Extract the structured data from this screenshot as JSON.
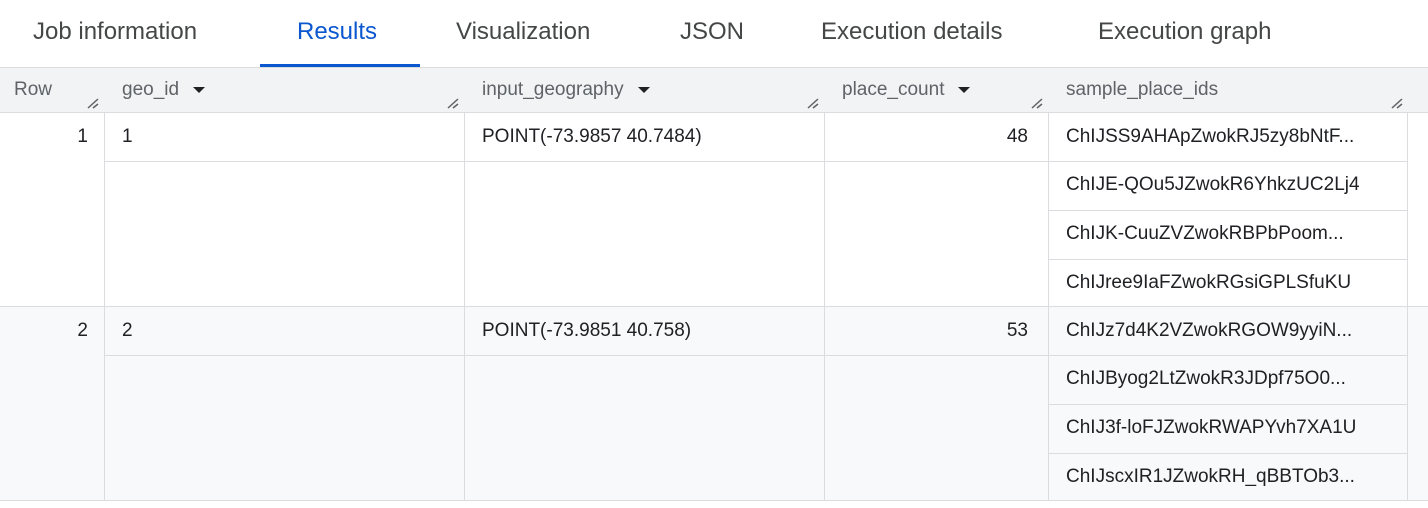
{
  "tabs": [
    {
      "label": "Job information",
      "active": false
    },
    {
      "label": "Results",
      "active": true
    },
    {
      "label": "Visualization",
      "active": false
    },
    {
      "label": "JSON",
      "active": false
    },
    {
      "label": "Execution details",
      "active": false
    },
    {
      "label": "Execution graph",
      "active": false
    }
  ],
  "accent_color": "#0b57d0",
  "columns": [
    {
      "label": "Row"
    },
    {
      "label": "geo_id",
      "sortable": true
    },
    {
      "label": "input_geography",
      "sortable": true
    },
    {
      "label": "place_count",
      "sortable": true
    },
    {
      "label": "sample_place_ids"
    }
  ],
  "rows": [
    {
      "row": "1",
      "geo_id": "1",
      "input_geography": "POINT(-73.9857 40.7484)",
      "place_count": "48",
      "sample_place_ids": [
        "ChIJSS9AHApZwokRJ5zy8bNtF...",
        "ChIJE-QOu5JZwokR6YhkzUC2Lj4",
        "ChIJK-CuuZVZwokRBPbPoom...",
        "ChIJree9IaFZwokRGsiGPLSfuKU"
      ]
    },
    {
      "row": "2",
      "geo_id": "2",
      "input_geography": "POINT(-73.9851 40.758)",
      "place_count": "53",
      "sample_place_ids": [
        "ChIJz7d4K2VZwokRGOW9yyiN...",
        "ChIJByog2LtZwokR3JDpf75O0...",
        "ChIJ3f-loFJZwokRWAPYvh7XA1U",
        "ChIJscxIR1JZwokRH_qBBTOb3..."
      ]
    }
  ]
}
